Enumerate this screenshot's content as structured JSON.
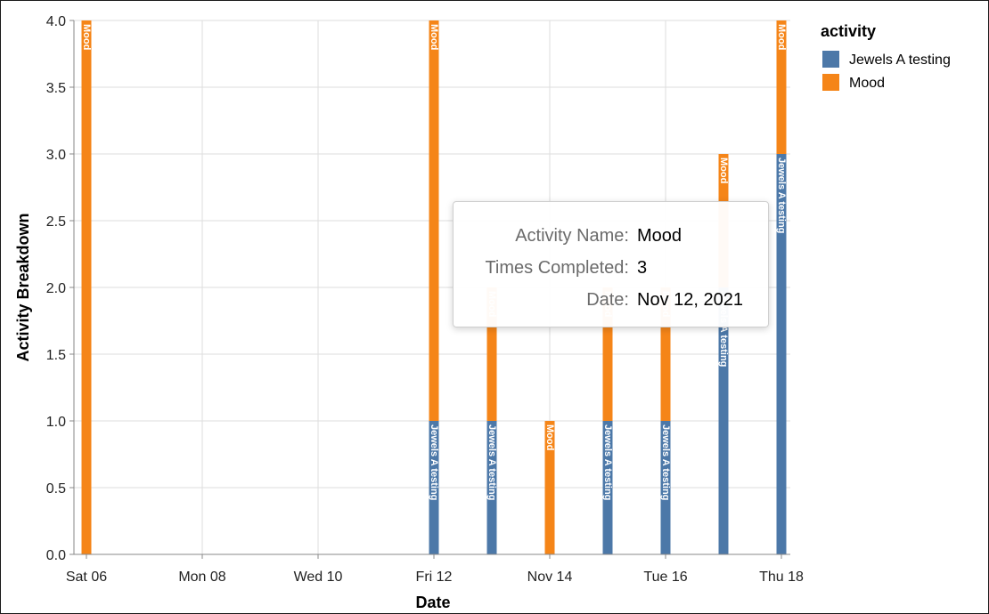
{
  "chart_data": {
    "type": "bar",
    "stacked": true,
    "title": "",
    "xlabel": "Date",
    "ylabel": "Activity Breakdown",
    "x_tick_labels": [
      "Sat 06",
      "Mon 08",
      "Wed 10",
      "Fri 12",
      "Nov 14",
      "Tue 16",
      "Thu 18"
    ],
    "x_tick_dates": [
      "2021-11-06",
      "2021-11-08",
      "2021-11-10",
      "2021-11-12",
      "2021-11-14",
      "2021-11-16",
      "2021-11-18"
    ],
    "x_range": [
      "2021-11-06",
      "2021-11-18"
    ],
    "ylim": [
      0,
      4
    ],
    "y_ticks": [
      "0.0",
      "0.5",
      "1.0",
      "1.5",
      "2.0",
      "2.5",
      "3.0",
      "3.5",
      "4.0"
    ],
    "grid": true,
    "legend": {
      "title": "activity",
      "placement": "right",
      "entries": [
        {
          "name": "Jewels A testing",
          "color": "#4c78a8"
        },
        {
          "name": "Mood",
          "color": "#f58518"
        }
      ]
    },
    "dates": [
      "2021-11-06",
      "2021-11-12",
      "2021-11-13",
      "2021-11-14",
      "2021-11-15",
      "2021-11-16",
      "2021-11-17",
      "2021-11-18"
    ],
    "series": [
      {
        "name": "Jewels A testing",
        "color": "#4c78a8",
        "values": [
          0,
          1,
          1,
          0,
          1,
          1,
          2,
          3
        ]
      },
      {
        "name": "Mood",
        "color": "#f58518",
        "values": [
          4,
          3,
          1,
          1,
          1,
          1,
          1,
          1
        ]
      }
    ]
  },
  "tooltip": {
    "rows": [
      {
        "key": "Activity Name:",
        "value": "Mood"
      },
      {
        "key": "Times Completed:",
        "value": "3"
      },
      {
        "key": "Date:",
        "value": "Nov 12, 2021"
      }
    ]
  }
}
